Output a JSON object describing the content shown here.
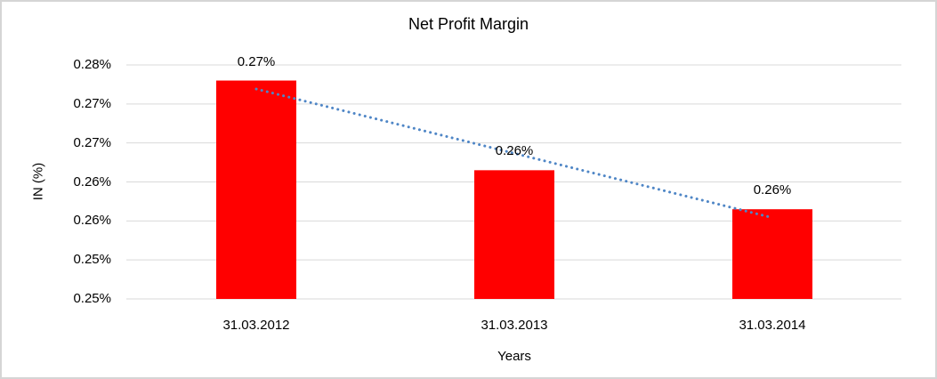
{
  "chart_data": {
    "type": "bar",
    "title": "Net Profit Margin",
    "xlabel": "Years",
    "ylabel": "IN (%)",
    "categories": [
      "31.03.2012",
      "31.03.2013",
      "31.03.2014"
    ],
    "values": [
      0.273,
      0.2615,
      0.2565
    ],
    "data_labels": [
      "0.27%",
      "0.26%",
      "0.26%"
    ],
    "yticks_top_to_bottom": [
      "0.28%",
      "0.27%",
      "0.27%",
      "0.26%",
      "0.26%",
      "0.25%",
      "0.25%"
    ],
    "ylim": [
      0.245,
      0.275
    ],
    "grid": "horizontal",
    "legend": "none",
    "trendline": "linear",
    "colors": {
      "bar": "#ff0000",
      "trendline": "#4f86c6",
      "gridline": "#d9d9d9",
      "text": "#000000",
      "frame_border": "#d5d5d5",
      "background": "#ffffff"
    }
  }
}
